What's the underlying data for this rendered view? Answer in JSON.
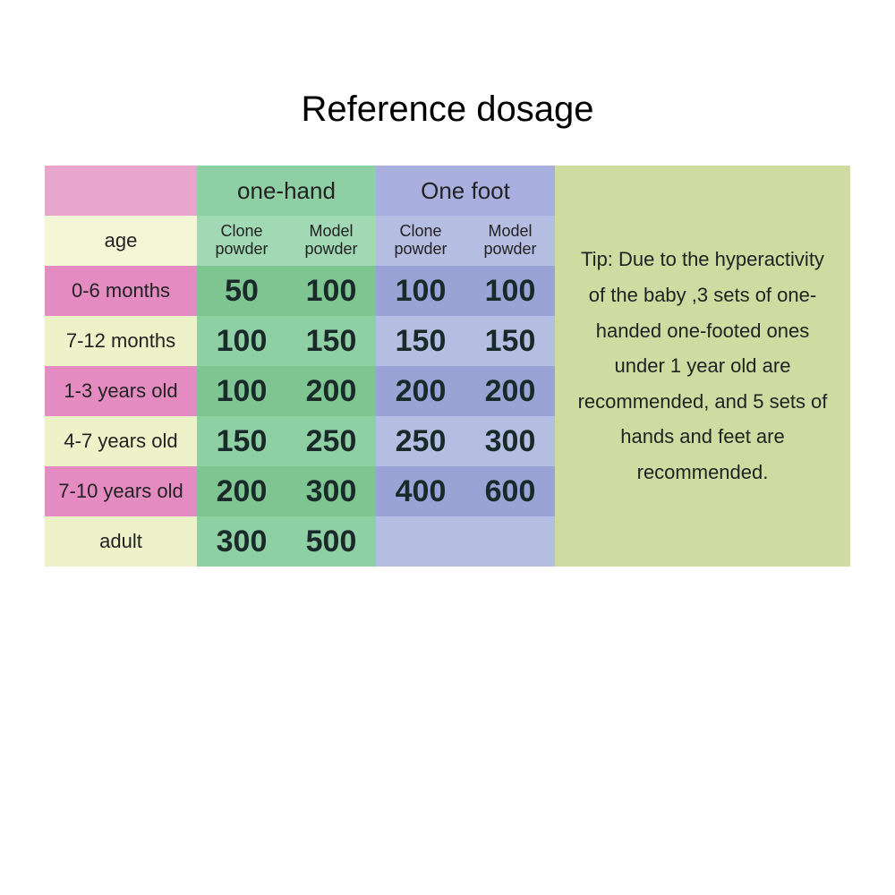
{
  "title": "Reference dosage",
  "headers": {
    "one_hand": "one-hand",
    "one_foot": "One foot",
    "age": "age",
    "clone_powder": "Clone powder",
    "model_powder": "Model powder"
  },
  "rows": [
    {
      "age": "0-6 months",
      "hand_clone": "50",
      "hand_model": "100",
      "foot_clone": "100",
      "foot_model": "100"
    },
    {
      "age": "7-12 months",
      "hand_clone": "100",
      "hand_model": "150",
      "foot_clone": "150",
      "foot_model": "150"
    },
    {
      "age": "1-3 years old",
      "hand_clone": "100",
      "hand_model": "200",
      "foot_clone": "200",
      "foot_model": "200"
    },
    {
      "age": "4-7 years old",
      "hand_clone": "150",
      "hand_model": "250",
      "foot_clone": "250",
      "foot_model": "300"
    },
    {
      "age": "7-10 years old",
      "hand_clone": "200",
      "hand_model": "300",
      "foot_clone": "400",
      "foot_model": "600"
    },
    {
      "age": "adult",
      "hand_clone": "300",
      "hand_model": "500",
      "foot_clone": "",
      "foot_model": ""
    }
  ],
  "tip": "Tip: Due to the hyperactivity of the baby ,3 sets of one-handed one-footed ones under 1 year old are recommended, and 5 sets of hands and feet are recommended.",
  "colors": {
    "pink_light": "#e8a6cd",
    "pink_dark": "#e48bc2",
    "cream_light": "#f4f7d6",
    "cream_dark": "#eef2c9",
    "green_light": "#a0d9b4",
    "green_mid": "#8fcfa4",
    "green_dark": "#7ec592",
    "blue_light": "#a9b0df",
    "blue_mid": "#b6bde3",
    "blue_dark": "#9aa2d6",
    "olive": "#cfdba0",
    "text": "#1a2a2a"
  }
}
